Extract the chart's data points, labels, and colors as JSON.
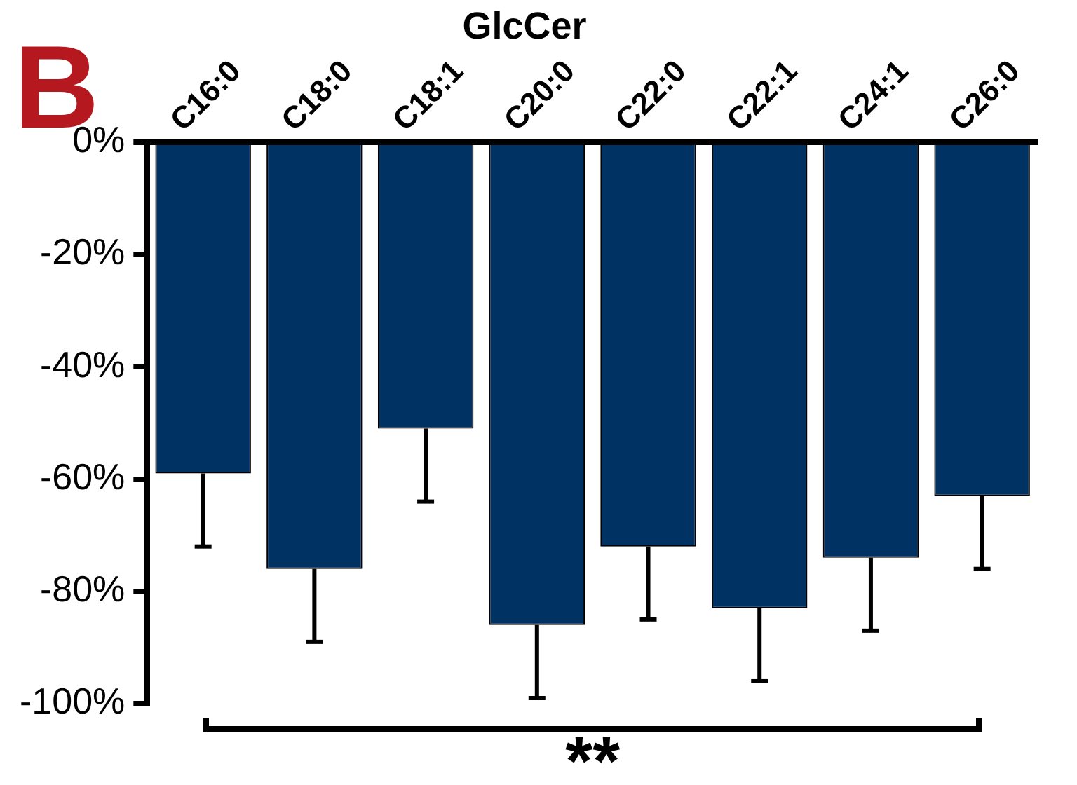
{
  "chart_data": {
    "type": "bar",
    "title": "GlcCer",
    "categories": [
      "C16:0",
      "C18:0",
      "C18:1",
      "C20:0",
      "C22:0",
      "C22:1",
      "C24:1",
      "C26:0"
    ],
    "values": [
      -59,
      -76,
      -51,
      -86,
      -72,
      -83,
      -74,
      -63
    ],
    "errors": [
      [
        -72,
        -59
      ],
      [
        -89,
        -76
      ],
      [
        -64,
        -51
      ],
      [
        -99,
        -86
      ],
      [
        -85,
        -72
      ],
      [
        -96,
        -83
      ],
      [
        -87,
        -74
      ],
      [
        -76,
        -63
      ]
    ],
    "color": "#003264",
    "ylim": [
      -100,
      0
    ],
    "yticks": [
      {
        "value": 0,
        "label": "0%"
      },
      {
        "value": -20,
        "label": "-20%"
      },
      {
        "value": -40,
        "label": "-40%"
      },
      {
        "value": -60,
        "label": "-60%"
      },
      {
        "value": -80,
        "label": "-80%"
      },
      {
        "value": -100,
        "label": "-100%"
      }
    ],
    "grid": false,
    "legend": false,
    "annotations": [
      "B",
      "**"
    ]
  }
}
